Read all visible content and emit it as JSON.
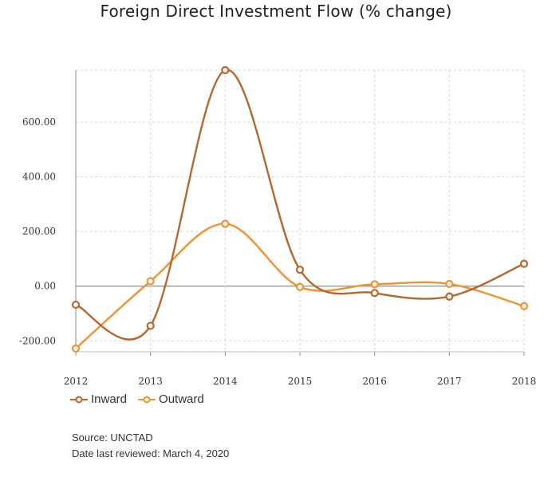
{
  "chart_data": {
    "type": "line",
    "title": "Foreign Direct Investment Flow (% change)",
    "x": [
      "2012",
      "2013",
      "2014",
      "2015",
      "2016",
      "2017",
      "2018"
    ],
    "series": [
      {
        "name": "Inward",
        "color": "#b5672d",
        "values": [
          -68,
          -145,
          790,
          60,
          -25,
          -38,
          82
        ]
      },
      {
        "name": "Outward",
        "color": "#f0922f",
        "values": [
          -228,
          18,
          228,
          -3,
          7,
          8,
          -73
        ]
      }
    ],
    "ylim": [
      -240,
      790
    ],
    "yticks": [
      -200,
      0,
      200,
      400,
      600
    ],
    "ytick_labels": [
      "-200.00",
      "0.00",
      "200.00",
      "400.00",
      "600.00"
    ],
    "grid": true,
    "legend_placement": "bottom-left"
  },
  "notes": {
    "source": "Source: UNCTAD",
    "reviewed": "Date last reviewed: March 4, 2020"
  }
}
